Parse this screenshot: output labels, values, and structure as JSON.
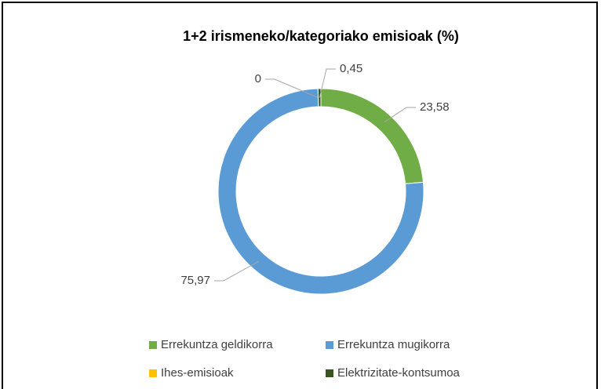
{
  "chart_data": {
    "type": "donut",
    "title": "1+2 irismeneko/kategoriako emisioak (%)",
    "categories": [
      "Errekuntza geldikorra",
      "Errekuntza mugikorra",
      "Ihes-emisioak",
      "Elektrizitate-kontsumoa"
    ],
    "values": [
      23.58,
      75.97,
      0,
      0.45
    ],
    "value_labels": [
      "23,58",
      "75,97",
      "0",
      "0,45"
    ],
    "colors": [
      "#70ad47",
      "#5b9bd5",
      "#ffc000",
      "#375623"
    ],
    "legend": "bottom"
  }
}
